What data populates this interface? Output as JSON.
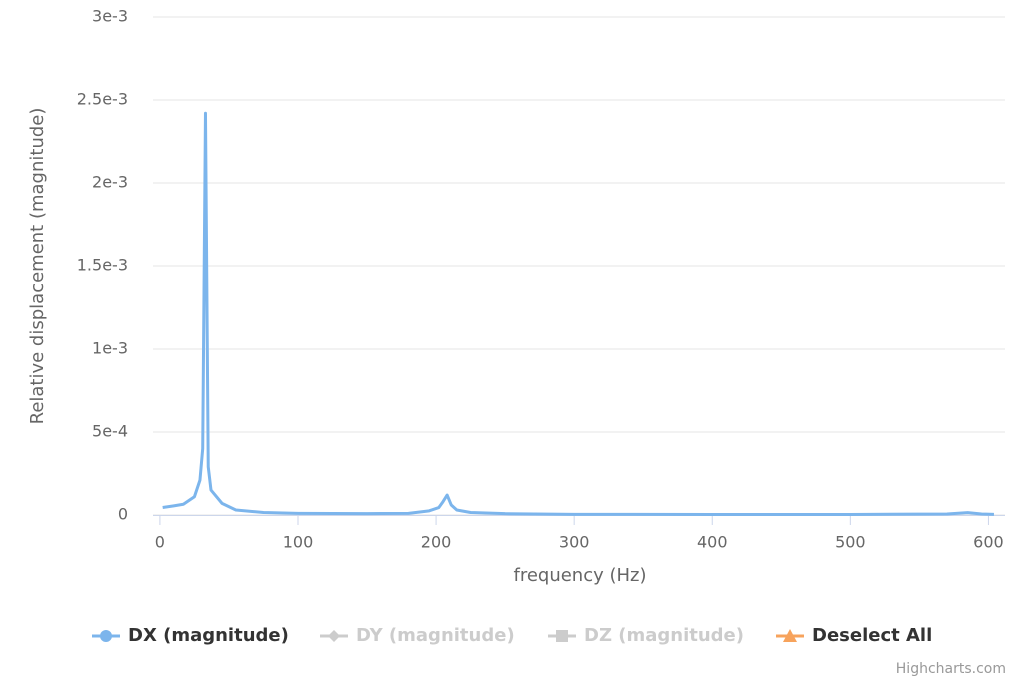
{
  "chart_data": {
    "type": "line",
    "x_label": "frequency (Hz)",
    "y_label": "Relative displacement (magnitude)",
    "xlim": [
      -5,
      612
    ],
    "ylim": [
      0,
      0.003
    ],
    "xticks": [
      0,
      100,
      200,
      300,
      400,
      500,
      600
    ],
    "yticks": [
      0,
      {
        "value": 0.0005,
        "label": "5e-4"
      },
      {
        "value": 0.001,
        "label": "1e-3"
      },
      {
        "value": 0.0015,
        "label": "1.5e-3"
      },
      {
        "value": 0.002,
        "label": "2e-3"
      },
      {
        "value": 0.0025,
        "label": "2.5e-3"
      },
      {
        "value": 0.003,
        "label": "3e-3"
      }
    ],
    "grid": true,
    "series": [
      {
        "name": "DX (magnitude)",
        "color": "#7cb5ec",
        "symbol": "circle",
        "x": [
          2,
          10,
          17,
          25,
          29,
          31,
          33,
          35,
          37,
          45,
          55,
          75,
          100,
          150,
          180,
          195,
          202,
          205,
          208,
          211,
          215,
          225,
          250,
          300,
          400,
          500,
          570,
          585,
          595,
          604
        ],
        "values": [
          4.5e-05,
          5.5e-05,
          6.5e-05,
          0.00011,
          0.00021,
          0.0004,
          0.00242,
          0.00029,
          0.00015,
          7e-05,
          3e-05,
          1.5e-05,
          1e-05,
          8e-06,
          1e-05,
          2.5e-05,
          4.5e-05,
          8e-05,
          0.00012,
          6e-05,
          3e-05,
          1.5e-05,
          8e-06,
          4e-06,
          3e-06,
          3e-06,
          6e-06,
          1.4e-05,
          6e-06,
          4e-06
        ]
      }
    ],
    "legend_items": [
      {
        "name": "DY (magnitude)",
        "color": "#cccccc",
        "symbol": "diamond"
      },
      {
        "name": "DZ (magnitude)",
        "color": "#cccccc",
        "symbol": "square"
      },
      {
        "name": "Deselect All",
        "color": "#f7a35c",
        "symbol": "triangle"
      }
    ],
    "credits": "Highcharts.com"
  }
}
